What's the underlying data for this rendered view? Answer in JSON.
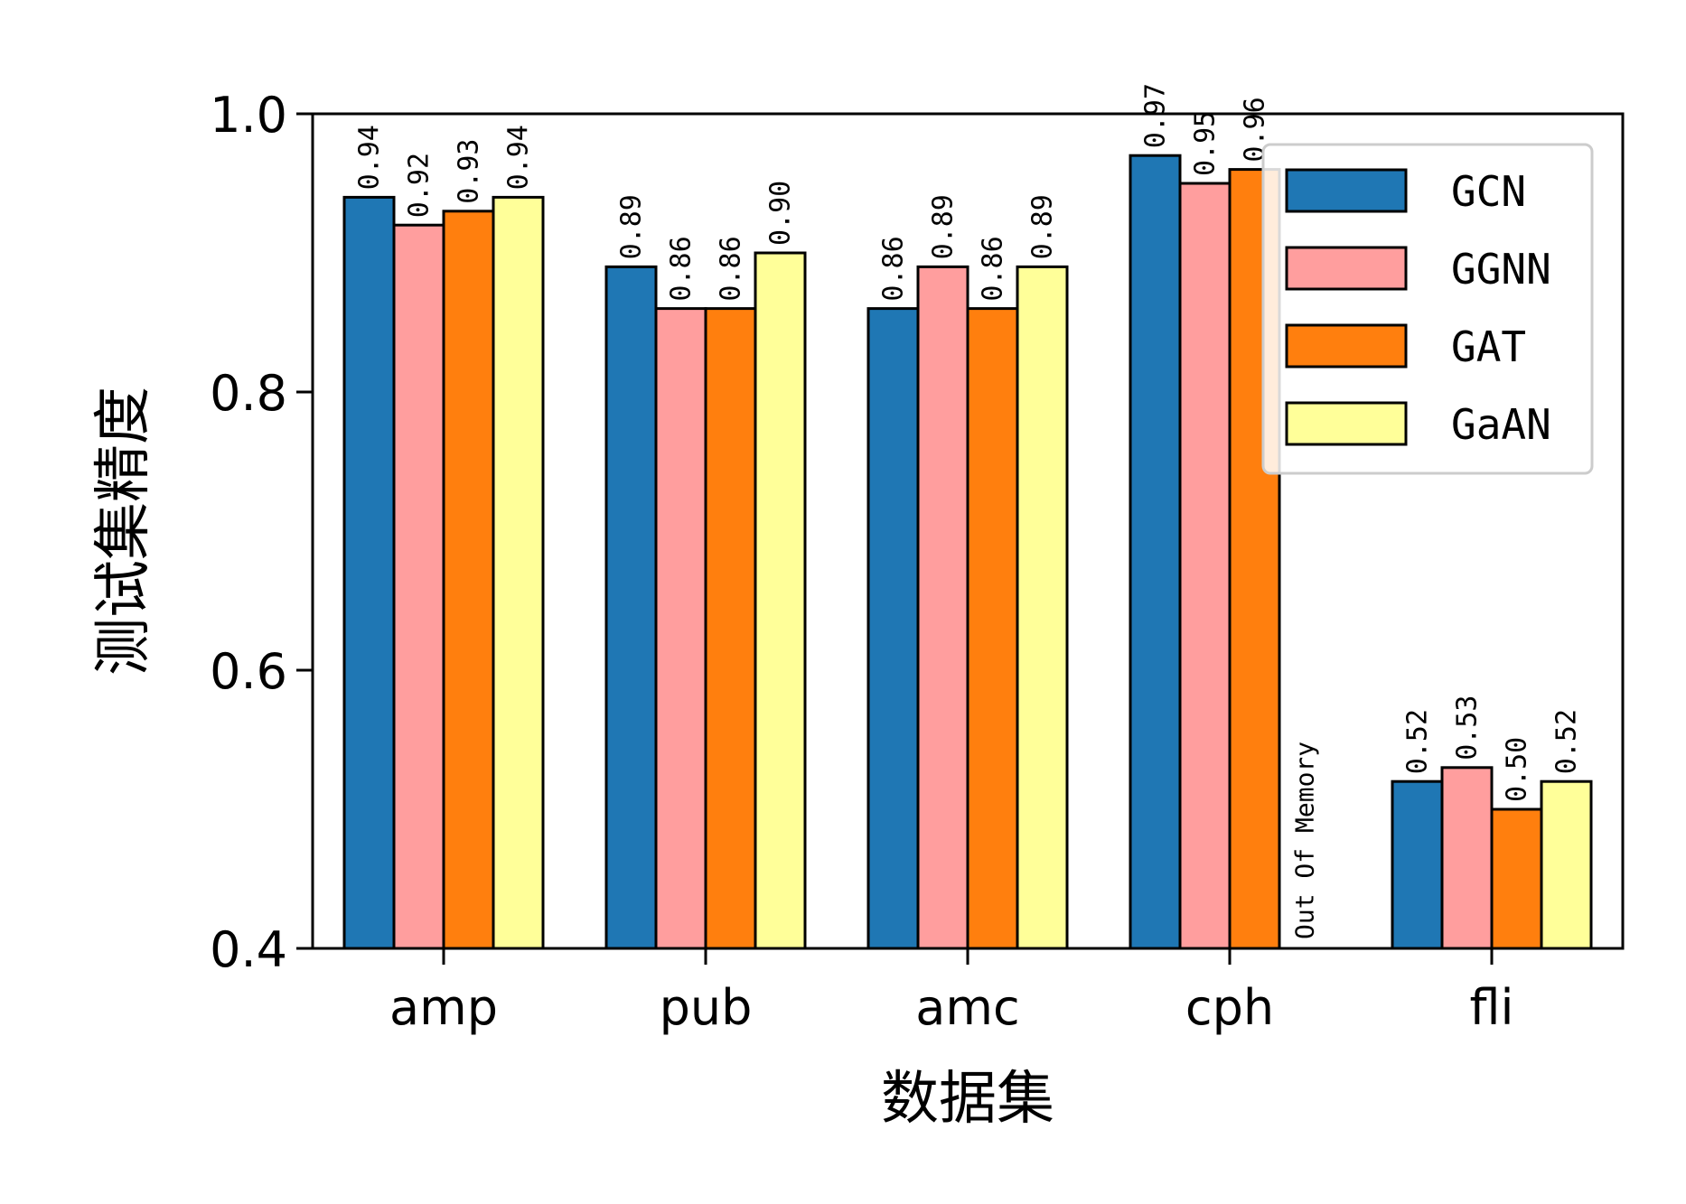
{
  "chart_data": {
    "type": "bar",
    "xlabel": "数据集",
    "ylabel": "测试集精度",
    "categories": [
      "amp",
      "pub",
      "amc",
      "cph",
      "fli"
    ],
    "ylim": [
      0.4,
      1.0
    ],
    "yticks": [
      "0.4",
      "0.6",
      "0.8",
      "1.0"
    ],
    "legend_position": "top-right",
    "grid": false,
    "series": [
      {
        "name": "GCN",
        "color": "#1f77b4",
        "values": [
          0.94,
          0.89,
          0.86,
          0.97,
          0.52
        ],
        "labels": [
          "0.94",
          "0.89",
          "0.86",
          "0.97",
          "0.52"
        ]
      },
      {
        "name": "GGNN",
        "color": "#ff9e9e",
        "values": [
          0.92,
          0.86,
          0.89,
          0.95,
          0.53
        ],
        "labels": [
          "0.92",
          "0.86",
          "0.89",
          "0.95",
          "0.53"
        ]
      },
      {
        "name": "GAT",
        "color": "#ff7f0e",
        "values": [
          0.93,
          0.86,
          0.86,
          0.96,
          0.5
        ],
        "labels": [
          "0.93",
          "0.86",
          "0.86",
          "0.96",
          "0.50"
        ]
      },
      {
        "name": "GaAN",
        "color": "#ffff99",
        "values": [
          0.94,
          0.9,
          0.89,
          null,
          0.52
        ],
        "labels": [
          "0.94",
          "0.90",
          "0.89",
          "",
          "0.52"
        ]
      }
    ],
    "annotations": [
      {
        "category": "cph",
        "series": "GaAN",
        "text": "Out Of Memory"
      }
    ]
  }
}
